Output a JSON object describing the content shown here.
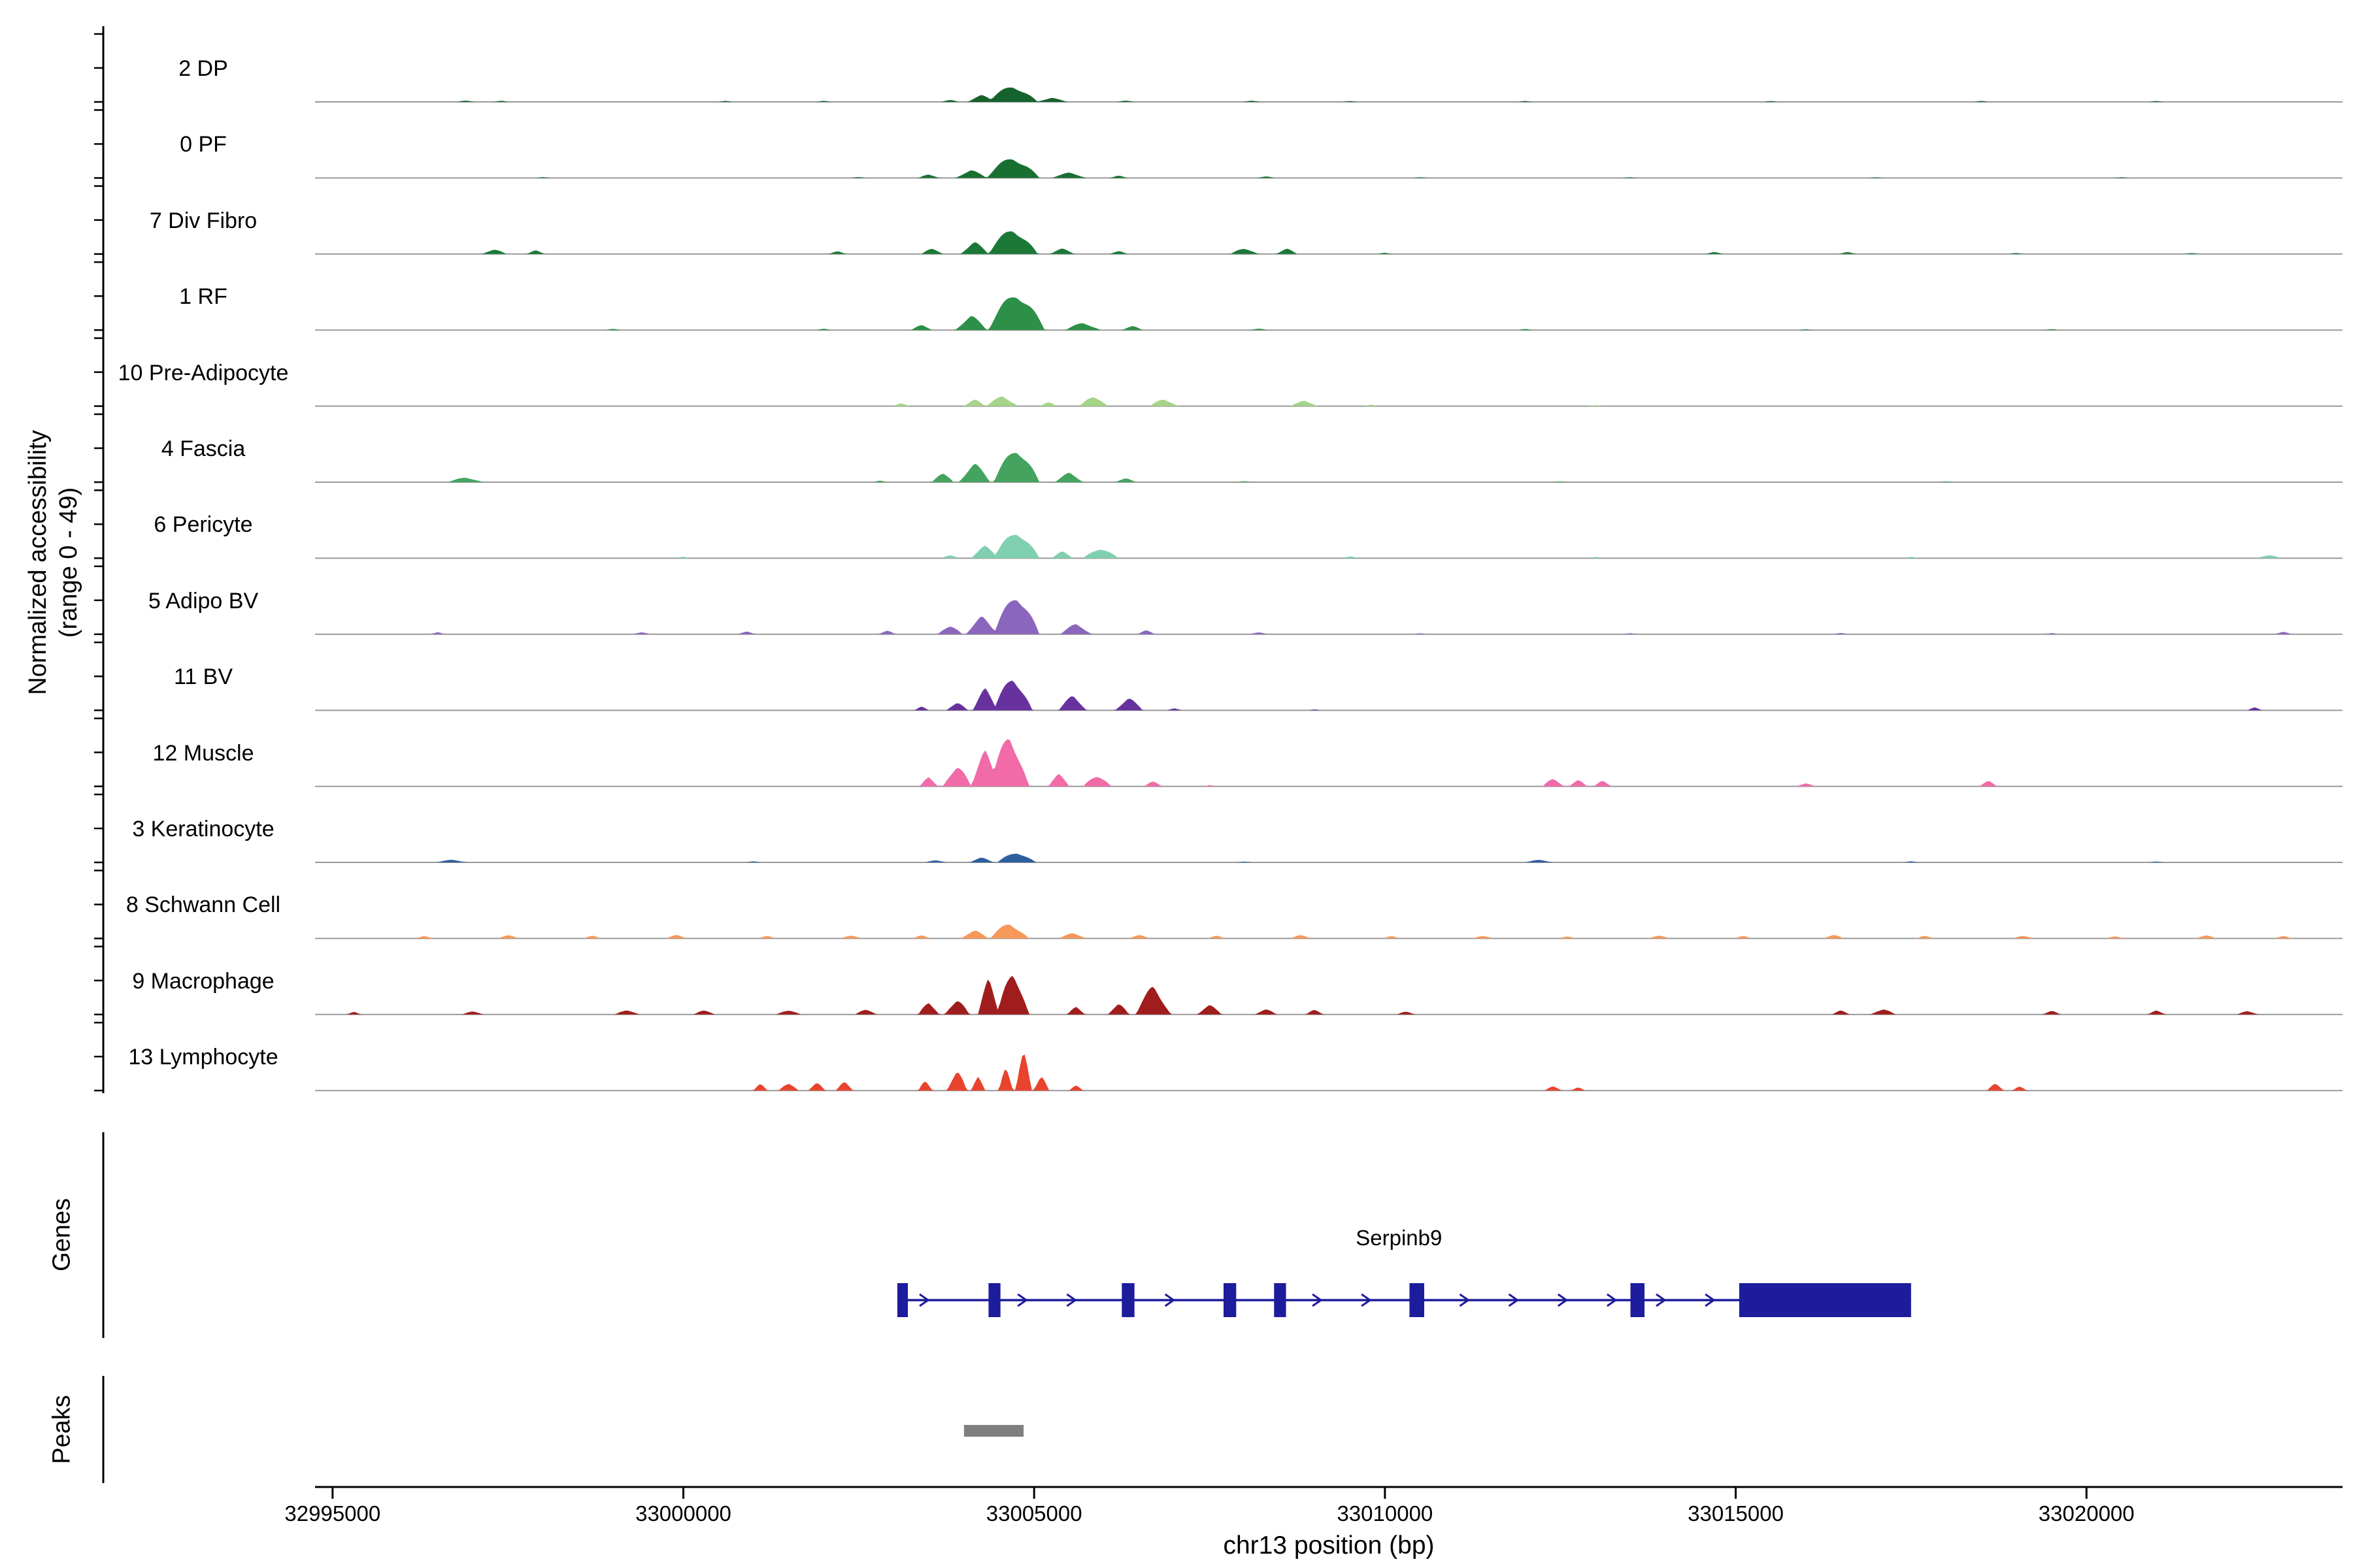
{
  "chart_data": {
    "type": "area",
    "description": "Genome browser style normalized chromatin accessibility tracks for 14 cell clusters over a region of mouse chr13 around the Serpinb9 gene, with a gene model track and a called-peaks track.",
    "y_axis": {
      "title_line1": "Normalized accessibility",
      "title_line2": "(range 0 - 49)",
      "range": [
        0,
        49
      ]
    },
    "x_axis": {
      "title": "chr13 position (bp)",
      "domain": [
        32994750,
        33023650
      ],
      "ticks": [
        {
          "value": 32995000,
          "label": "32995000"
        },
        {
          "value": 33000000,
          "label": "33000000"
        },
        {
          "value": 33005000,
          "label": "33005000"
        },
        {
          "value": 33010000,
          "label": "33010000"
        },
        {
          "value": 33015000,
          "label": "33015000"
        },
        {
          "value": 33020000,
          "label": "33020000"
        }
      ]
    },
    "row_labels": {
      "genes": "Genes",
      "peaks": "Peaks"
    },
    "tracks": [
      {
        "label": "2 DP",
        "color": "#15622d",
        "peaks": [
          [
            33004700,
            700,
            14
          ],
          [
            33004250,
            400,
            5
          ],
          [
            33005250,
            450,
            3
          ],
          [
            33003800,
            250,
            2
          ],
          [
            32996900,
            250,
            1.2
          ],
          [
            32997400,
            200,
            1
          ],
          [
            33000600,
            200,
            1
          ],
          [
            33002000,
            200,
            0.8
          ],
          [
            33006300,
            250,
            1
          ],
          [
            33008100,
            250,
            1.2
          ],
          [
            33009500,
            200,
            0.8
          ],
          [
            33012000,
            200,
            0.7
          ],
          [
            33015500,
            200,
            0.7
          ],
          [
            33018500,
            200,
            0.8
          ],
          [
            33021000,
            200,
            0.7
          ]
        ]
      },
      {
        "label": "0 PF",
        "color": "#186f32",
        "peaks": [
          [
            33004700,
            750,
            18
          ],
          [
            33004100,
            450,
            6
          ],
          [
            33005500,
            500,
            4
          ],
          [
            33003500,
            300,
            3
          ],
          [
            33006200,
            250,
            2
          ],
          [
            33002500,
            200,
            1
          ],
          [
            32998000,
            200,
            0.8
          ],
          [
            33008300,
            250,
            1.5
          ],
          [
            33010500,
            200,
            0.7
          ],
          [
            33013500,
            200,
            0.7
          ],
          [
            33017000,
            200,
            0.7
          ],
          [
            33020500,
            200,
            0.7
          ]
        ]
      },
      {
        "label": "7 Div Fibro",
        "color": "#1b7837",
        "peaks": [
          [
            33004700,
            700,
            22
          ],
          [
            33004150,
            400,
            9
          ],
          [
            33003550,
            300,
            5
          ],
          [
            33005400,
            350,
            4
          ],
          [
            33006200,
            250,
            2.5
          ],
          [
            32997300,
            350,
            4
          ],
          [
            32997900,
            250,
            3
          ],
          [
            33002200,
            250,
            2
          ],
          [
            33008000,
            400,
            5
          ],
          [
            33008600,
            300,
            4
          ],
          [
            33010000,
            200,
            1
          ],
          [
            33014700,
            250,
            2
          ],
          [
            33016600,
            250,
            1.5
          ],
          [
            33019000,
            200,
            1
          ],
          [
            33021500,
            200,
            1
          ]
        ]
      },
      {
        "label": "1 RF",
        "color": "#2d9048",
        "peaks": [
          [
            33004750,
            800,
            33
          ],
          [
            33004100,
            450,
            11
          ],
          [
            33005700,
            500,
            6
          ],
          [
            33003400,
            300,
            4
          ],
          [
            33006400,
            300,
            3
          ],
          [
            33002000,
            200,
            1
          ],
          [
            32999000,
            200,
            1
          ],
          [
            33008200,
            250,
            1.5
          ],
          [
            33012000,
            200,
            0.8
          ],
          [
            33016000,
            200,
            0.8
          ],
          [
            33019500,
            200,
            0.8
          ]
        ]
      },
      {
        "label": "10 Pre-Adipocyte",
        "color": "#a6d489",
        "peaks": [
          [
            33004550,
            450,
            8
          ],
          [
            33004150,
            300,
            5
          ],
          [
            33005850,
            400,
            9
          ],
          [
            33006850,
            400,
            6
          ],
          [
            33008850,
            400,
            4
          ],
          [
            33003100,
            250,
            2
          ],
          [
            33005200,
            250,
            3
          ],
          [
            33009800,
            200,
            1
          ],
          [
            33013000,
            200,
            0.8
          ]
        ]
      },
      {
        "label": "4 Fascia",
        "color": "#44a45f",
        "peaks": [
          [
            33004750,
            650,
            30
          ],
          [
            33004150,
            450,
            14
          ],
          [
            33003700,
            300,
            9
          ],
          [
            33005500,
            400,
            7
          ],
          [
            32996900,
            500,
            4
          ],
          [
            33006300,
            300,
            3
          ],
          [
            33002800,
            200,
            1.5
          ],
          [
            33008000,
            200,
            1
          ],
          [
            33012500,
            200,
            0.8
          ],
          [
            33018000,
            200,
            0.8
          ]
        ]
      },
      {
        "label": "6 Pericyte",
        "color": "#7fd0b0",
        "peaks": [
          [
            33004750,
            650,
            24
          ],
          [
            33004300,
            400,
            9
          ],
          [
            33005950,
            500,
            9
          ],
          [
            33005400,
            300,
            5
          ],
          [
            33003800,
            250,
            3
          ],
          [
            33009500,
            250,
            1.5
          ],
          [
            33013000,
            200,
            1
          ],
          [
            33017500,
            200,
            1
          ],
          [
            33022600,
            350,
            3
          ],
          [
            33000000,
            200,
            1
          ]
        ]
      },
      {
        "label": "5 Adipo BV",
        "color": "#8a67bd",
        "peaks": [
          [
            33004750,
            650,
            35
          ],
          [
            33004250,
            450,
            13
          ],
          [
            33003800,
            350,
            8
          ],
          [
            33005600,
            450,
            8
          ],
          [
            33002900,
            250,
            3
          ],
          [
            33000900,
            250,
            2
          ],
          [
            32999400,
            250,
            2
          ],
          [
            32996500,
            200,
            1.5
          ],
          [
            33006600,
            250,
            3
          ],
          [
            33008200,
            250,
            2
          ],
          [
            33010500,
            200,
            1
          ],
          [
            33013500,
            200,
            1
          ],
          [
            33016500,
            200,
            1
          ],
          [
            33019500,
            200,
            1
          ],
          [
            33022800,
            250,
            2
          ]
        ]
      },
      {
        "label": "11 BV",
        "color": "#68329e",
        "peaks": [
          [
            33004700,
            550,
            29
          ],
          [
            33004300,
            350,
            16
          ],
          [
            33005550,
            400,
            11
          ],
          [
            33006350,
            400,
            9
          ],
          [
            33003900,
            300,
            7
          ],
          [
            33003400,
            200,
            3
          ],
          [
            33007000,
            200,
            2
          ],
          [
            33022400,
            200,
            3
          ],
          [
            33009000,
            150,
            0.8
          ]
        ]
      },
      {
        "label": "12 Muscle",
        "color": "#f06ba8",
        "peaks": [
          [
            33004650,
            550,
            44
          ],
          [
            33004300,
            400,
            26
          ],
          [
            33003900,
            400,
            18
          ],
          [
            33003500,
            250,
            8
          ],
          [
            33005350,
            300,
            9
          ],
          [
            33005900,
            400,
            10
          ],
          [
            33006700,
            250,
            4
          ],
          [
            33012400,
            300,
            7
          ],
          [
            33012750,
            250,
            6
          ],
          [
            33013100,
            250,
            4
          ],
          [
            33016000,
            250,
            3
          ],
          [
            33018600,
            250,
            4
          ],
          [
            33007500,
            150,
            1
          ]
        ]
      },
      {
        "label": "3 Keratinocyte",
        "color": "#2c5f9e",
        "peaks": [
          [
            33004750,
            550,
            9
          ],
          [
            33004250,
            350,
            3.5
          ],
          [
            33003600,
            300,
            2
          ],
          [
            32996700,
            450,
            2
          ],
          [
            33012200,
            400,
            2
          ],
          [
            33001000,
            200,
            0.8
          ],
          [
            33008000,
            200,
            0.8
          ],
          [
            33017500,
            200,
            0.8
          ],
          [
            33021000,
            200,
            0.7
          ]
        ]
      },
      {
        "label": "8 Schwann Cell",
        "color": "#f69859",
        "peaks": [
          [
            33004650,
            550,
            13
          ],
          [
            33004150,
            400,
            6
          ],
          [
            33005550,
            400,
            4
          ],
          [
            33003400,
            250,
            2.5
          ],
          [
            32996300,
            250,
            2
          ],
          [
            32997500,
            300,
            2.5
          ],
          [
            32998700,
            250,
            2
          ],
          [
            32999900,
            300,
            2.5
          ],
          [
            33001200,
            250,
            2
          ],
          [
            33002400,
            300,
            2.5
          ],
          [
            33006500,
            300,
            2.5
          ],
          [
            33007600,
            250,
            2
          ],
          [
            33008800,
            300,
            2.5
          ],
          [
            33010100,
            250,
            2
          ],
          [
            33011400,
            300,
            2.5
          ],
          [
            33012600,
            250,
            2
          ],
          [
            33013900,
            300,
            2.5
          ],
          [
            33015100,
            250,
            2
          ],
          [
            33016400,
            300,
            2.5
          ],
          [
            33017700,
            250,
            2
          ],
          [
            33019100,
            300,
            2.5
          ],
          [
            33020400,
            250,
            2
          ],
          [
            33021700,
            300,
            2.5
          ],
          [
            33022800,
            250,
            2
          ]
        ]
      },
      {
        "label": "9 Macrophage",
        "color": "#a01d1d",
        "peaks": [
          [
            33004700,
            450,
            38
          ],
          [
            33004350,
            300,
            26
          ],
          [
            33003900,
            350,
            13
          ],
          [
            33003500,
            300,
            10
          ],
          [
            33006700,
            500,
            22
          ],
          [
            33006200,
            300,
            9
          ],
          [
            33007500,
            350,
            7
          ],
          [
            33008300,
            300,
            5
          ],
          [
            33009000,
            250,
            4
          ],
          [
            32997000,
            300,
            3
          ],
          [
            32999200,
            350,
            4
          ],
          [
            33000300,
            300,
            4
          ],
          [
            33001500,
            350,
            4
          ],
          [
            33002600,
            300,
            5
          ],
          [
            33005600,
            250,
            6
          ],
          [
            33010300,
            250,
            3
          ],
          [
            33016500,
            250,
            3
          ],
          [
            33017100,
            350,
            5
          ],
          [
            33019500,
            250,
            3
          ],
          [
            33021000,
            250,
            3
          ],
          [
            33022300,
            300,
            3
          ],
          [
            32995300,
            200,
            2
          ]
        ]
      },
      {
        "label": "13 Lymphocyte",
        "color": "#e8432d",
        "peaks": [
          [
            33004850,
            220,
            41
          ],
          [
            33004600,
            200,
            20
          ],
          [
            33003900,
            280,
            18
          ],
          [
            33004200,
            200,
            10
          ],
          [
            33005100,
            220,
            12
          ],
          [
            33003450,
            200,
            8
          ],
          [
            33001500,
            280,
            7
          ],
          [
            33001900,
            240,
            6
          ],
          [
            33002300,
            240,
            7
          ],
          [
            33001100,
            200,
            5
          ],
          [
            33005600,
            200,
            4
          ],
          [
            33012400,
            240,
            4
          ],
          [
            33012750,
            200,
            3
          ],
          [
            33018700,
            240,
            5
          ],
          [
            33019050,
            200,
            4
          ]
        ]
      }
    ],
    "genes": [
      {
        "name": "Serpinb9",
        "color": "#1c1c9c",
        "start": 33003050,
        "end": 33017500,
        "strand": "+",
        "label_position_bp": 33010200,
        "exons": [
          [
            33003050,
            33003200
          ],
          [
            33004350,
            33004520
          ],
          [
            33006250,
            33006430
          ],
          [
            33007700,
            33007880
          ],
          [
            33008420,
            33008590
          ],
          [
            33010350,
            33010560
          ],
          [
            33013500,
            33013700
          ],
          [
            33015050,
            33017500
          ]
        ]
      }
    ],
    "peaks_track": [
      {
        "start": 33004000,
        "end": 33004850,
        "color": "#7f7f7f"
      }
    ]
  }
}
